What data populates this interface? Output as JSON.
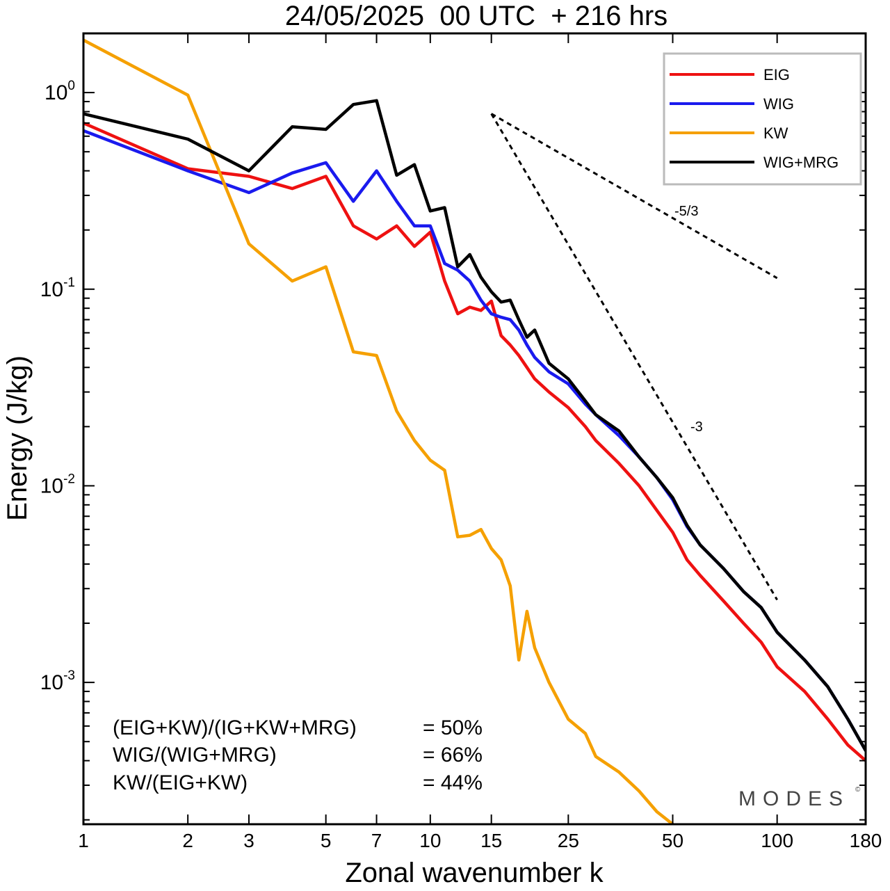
{
  "chart_data": {
    "type": "line",
    "title": "24/05/2025  00 UTC  + 216 hrs",
    "xlabel": "Zonal wavenumber k",
    "ylabel": "Energy (J/kg)",
    "xscale": "log",
    "yscale": "log",
    "xlim": [
      1,
      180
    ],
    "ylim": [
      0.00019,
      2.0
    ],
    "xticks": [
      1,
      2,
      3,
      5,
      7,
      10,
      15,
      25,
      50,
      100,
      180
    ],
    "yticks": [
      {
        "value": 1.0,
        "base": "10",
        "exp": "0"
      },
      {
        "value": 0.1,
        "base": "10",
        "exp": "-1"
      },
      {
        "value": 0.01,
        "base": "10",
        "exp": "-2"
      },
      {
        "value": 0.001,
        "base": "10",
        "exp": "-3"
      }
    ],
    "grid": false,
    "legend_position": "top-right",
    "series": [
      {
        "name": "EIG",
        "color": "#ee1111",
        "points": [
          [
            1,
            0.7
          ],
          [
            2,
            0.41
          ],
          [
            3,
            0.375
          ],
          [
            4,
            0.325
          ],
          [
            5,
            0.375
          ],
          [
            6,
            0.21
          ],
          [
            7,
            0.18
          ],
          [
            8,
            0.21
          ],
          [
            9,
            0.165
          ],
          [
            10,
            0.195
          ],
          [
            11,
            0.11
          ],
          [
            12,
            0.075
          ],
          [
            13,
            0.081
          ],
          [
            14,
            0.078
          ],
          [
            15,
            0.087
          ],
          [
            16,
            0.058
          ],
          [
            17,
            0.052
          ],
          [
            18,
            0.046
          ],
          [
            19,
            0.04
          ],
          [
            20,
            0.035
          ],
          [
            22,
            0.03
          ],
          [
            25,
            0.025
          ],
          [
            28,
            0.02
          ],
          [
            30,
            0.017
          ],
          [
            35,
            0.013
          ],
          [
            40,
            0.01
          ],
          [
            45,
            0.0075
          ],
          [
            50,
            0.0058
          ],
          [
            55,
            0.0042
          ],
          [
            60,
            0.0035
          ],
          [
            70,
            0.0026
          ],
          [
            80,
            0.002
          ],
          [
            90,
            0.0016
          ],
          [
            100,
            0.0012
          ],
          [
            120,
            0.0009
          ],
          [
            140,
            0.00065
          ],
          [
            160,
            0.00048
          ],
          [
            180,
            0.0004
          ]
        ]
      },
      {
        "name": "WIG",
        "color": "#1a1aee",
        "points": [
          [
            1,
            0.64
          ],
          [
            2,
            0.4
          ],
          [
            3,
            0.31
          ],
          [
            4,
            0.39
          ],
          [
            5,
            0.44
          ],
          [
            6,
            0.28
          ],
          [
            7,
            0.4
          ],
          [
            8,
            0.28
          ],
          [
            9,
            0.21
          ],
          [
            10,
            0.21
          ],
          [
            11,
            0.135
          ],
          [
            12,
            0.125
          ],
          [
            13,
            0.11
          ],
          [
            14,
            0.088
          ],
          [
            15,
            0.075
          ],
          [
            16,
            0.072
          ],
          [
            17,
            0.07
          ],
          [
            18,
            0.062
          ],
          [
            19,
            0.052
          ],
          [
            20,
            0.045
          ],
          [
            22,
            0.038
          ],
          [
            25,
            0.033
          ],
          [
            28,
            0.026
          ],
          [
            30,
            0.023
          ],
          [
            35,
            0.018
          ],
          [
            40,
            0.014
          ],
          [
            45,
            0.011
          ],
          [
            50,
            0.0085
          ],
          [
            55,
            0.0062
          ],
          [
            60,
            0.005
          ],
          [
            70,
            0.0038
          ],
          [
            80,
            0.0029
          ],
          [
            90,
            0.0024
          ],
          [
            100,
            0.0018
          ],
          [
            120,
            0.0013
          ],
          [
            140,
            0.00095
          ],
          [
            160,
            0.00065
          ],
          [
            180,
            0.00045
          ]
        ]
      },
      {
        "name": "KW",
        "color": "#f5a000",
        "points": [
          [
            1,
            1.85
          ],
          [
            2,
            0.97
          ],
          [
            3,
            0.17
          ],
          [
            4,
            0.11
          ],
          [
            5,
            0.13
          ],
          [
            6,
            0.048
          ],
          [
            7,
            0.046
          ],
          [
            8,
            0.024
          ],
          [
            9,
            0.017
          ],
          [
            10,
            0.0135
          ],
          [
            11,
            0.012
          ],
          [
            12,
            0.0055
          ],
          [
            13,
            0.0056
          ],
          [
            14,
            0.006
          ],
          [
            15,
            0.0048
          ],
          [
            16,
            0.0042
          ],
          [
            17,
            0.0031
          ],
          [
            18,
            0.0013
          ],
          [
            19,
            0.0023
          ],
          [
            20,
            0.0015
          ],
          [
            22,
            0.001
          ],
          [
            25,
            0.00065
          ],
          [
            28,
            0.00055
          ],
          [
            30,
            0.00042
          ],
          [
            35,
            0.00035
          ],
          [
            40,
            0.00028
          ],
          [
            45,
            0.00022
          ],
          [
            50,
            0.00019
          ]
        ]
      },
      {
        "name": "WIG+MRG",
        "color": "#000000",
        "points": [
          [
            1,
            0.78
          ],
          [
            2,
            0.58
          ],
          [
            3,
            0.4
          ],
          [
            4,
            0.67
          ],
          [
            5,
            0.65
          ],
          [
            6,
            0.87
          ],
          [
            7,
            0.91
          ],
          [
            8,
            0.38
          ],
          [
            9,
            0.43
          ],
          [
            10,
            0.25
          ],
          [
            11,
            0.26
          ],
          [
            12,
            0.13
          ],
          [
            13,
            0.15
          ],
          [
            14,
            0.115
          ],
          [
            15,
            0.097
          ],
          [
            16,
            0.086
          ],
          [
            17,
            0.088
          ],
          [
            18,
            0.07
          ],
          [
            19,
            0.057
          ],
          [
            20,
            0.062
          ],
          [
            22,
            0.042
          ],
          [
            25,
            0.035
          ],
          [
            28,
            0.027
          ],
          [
            30,
            0.023
          ],
          [
            35,
            0.019
          ],
          [
            40,
            0.014
          ],
          [
            45,
            0.011
          ],
          [
            50,
            0.0087
          ],
          [
            55,
            0.0063
          ],
          [
            60,
            0.005
          ],
          [
            70,
            0.0038
          ],
          [
            80,
            0.0029
          ],
          [
            90,
            0.0024
          ],
          [
            100,
            0.0018
          ],
          [
            120,
            0.0013
          ],
          [
            140,
            0.00095
          ],
          [
            160,
            0.00065
          ],
          [
            180,
            0.00045
          ]
        ]
      }
    ],
    "reference_lines": [
      {
        "label": "-5/3",
        "x": [
          15,
          100
        ],
        "y": [
          0.78,
          0.1139
        ]
      },
      {
        "label": "-3",
        "x": [
          15,
          100
        ],
        "y": [
          0.78,
          0.00263
        ]
      }
    ],
    "annotations": {
      "stats": [
        {
          "label": "(EIG+KW)/(IG+KW+MRG)",
          "value": "= 50%"
        },
        {
          "label": "WIG/(WIG+MRG)",
          "value": "= 66%"
        },
        {
          "label": "KW/(EIG+KW)",
          "value": "= 44%"
        }
      ],
      "watermark": "MODES",
      "watermark_mark": "©"
    }
  }
}
